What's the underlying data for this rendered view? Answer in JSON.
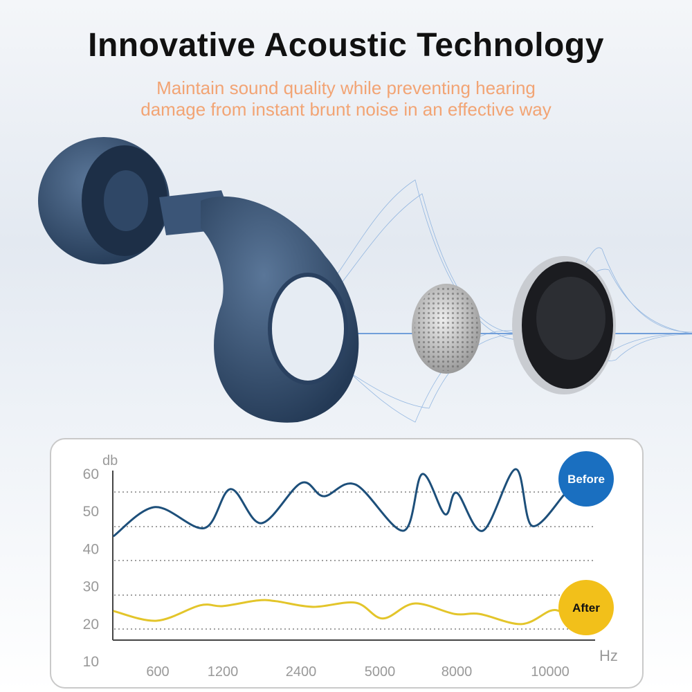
{
  "header": {
    "title": "Innovative Acoustic Technology",
    "subtitle_line1": "Maintain sound quality while preventing hearing",
    "subtitle_line2": "damage from instant brunt noise in an effective way"
  },
  "colors": {
    "subtitle": "#f2a474",
    "product": "#3a5677",
    "before": "#1a6fc0",
    "before_line": "#1d4f7a",
    "after": "#f2c01a",
    "after_line": "#e3c52a"
  },
  "chart_data": {
    "type": "line",
    "ylabel": "db",
    "xlabel": "Hz",
    "ylim": [
      10,
      60
    ],
    "y_ticks": [
      "60",
      "50",
      "40",
      "30",
      "20",
      "10"
    ],
    "x_ticks": [
      "600",
      "1200",
      "2400",
      "5000",
      "8000",
      "10000"
    ],
    "grid": "dotted horizontal",
    "legend": "right, end-of-line labels",
    "series": [
      {
        "name": "Before",
        "x": [
          190,
          575,
          1030,
          1320,
          1790,
          2400,
          3150,
          4200,
          5920,
          6650,
          7540,
          8000,
          8560,
          9260,
          9610,
          10300
        ],
        "y": [
          43.2,
          51,
          45.4,
          55.8,
          46.7,
          57.4,
          53.9,
          57,
          44.7,
          59.8,
          49.1,
          54.8,
          44.7,
          61.1,
          46,
          54.3
        ]
      },
      {
        "name": "After",
        "x": [
          190,
          590,
          990,
          1200,
          1730,
          2020,
          2800,
          4200,
          5110,
          6350,
          7920,
          8490,
          9380,
          9990,
          10200
        ],
        "y": [
          23.3,
          20.7,
          24.8,
          24.6,
          26.1,
          25.9,
          24.4,
          25.5,
          21.3,
          25.3,
          22.5,
          22.5,
          19.8,
          23.3,
          23.3
        ]
      }
    ]
  }
}
